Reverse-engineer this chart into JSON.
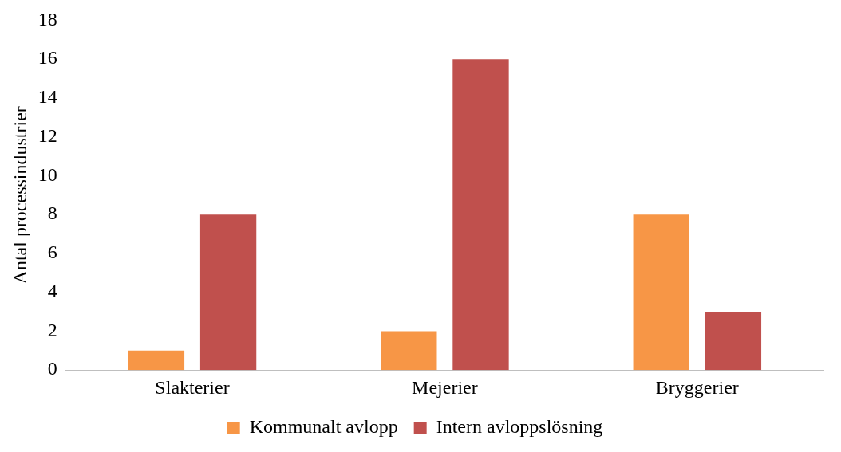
{
  "chart_data": {
    "type": "bar",
    "ylabel": "Antal processindustrier",
    "categories": [
      "Slakterier",
      "Mejerier",
      "Bryggerier"
    ],
    "series": [
      {
        "name": "Kommunalt avlopp",
        "color": "#f79646",
        "values": [
          1,
          2,
          8
        ]
      },
      {
        "name": "Intern avloppslösning",
        "color": "#c0504d",
        "values": [
          8,
          16,
          3
        ]
      }
    ],
    "ylim": [
      0,
      18
    ],
    "yticks": [
      0,
      2,
      4,
      6,
      8,
      10,
      12,
      14,
      16,
      18
    ],
    "grid": false,
    "legend": "bottom"
  }
}
